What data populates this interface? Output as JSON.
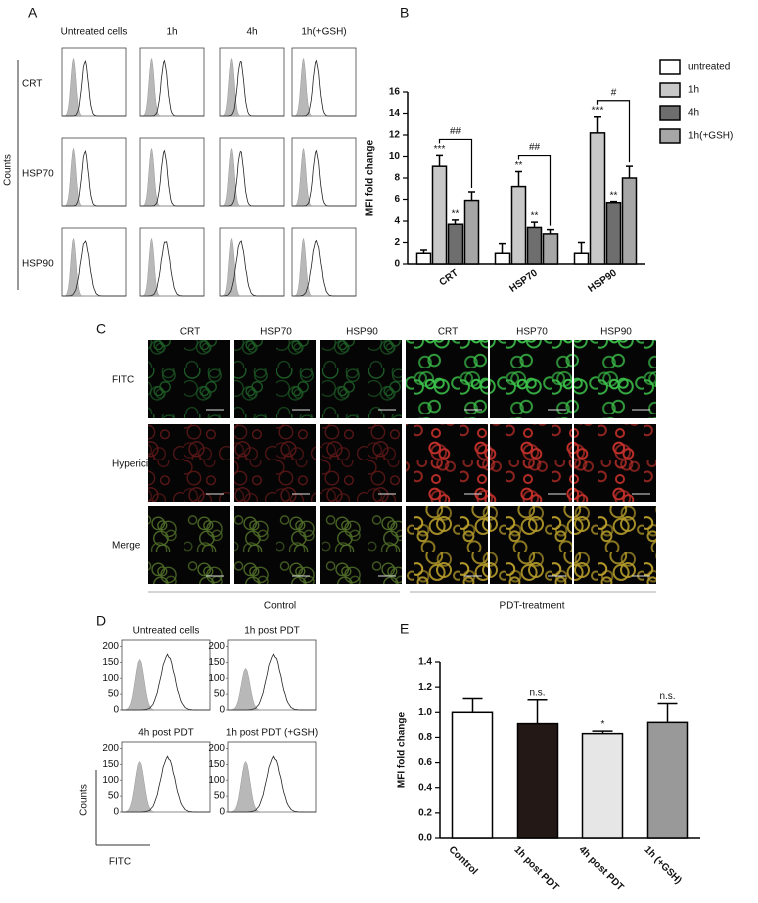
{
  "panel_labels": [
    "A",
    "B",
    "C",
    "D",
    "E"
  ],
  "panel_a": {
    "column_labels": [
      "Untreated cells",
      "1h",
      "4h",
      "1h(+GSH)"
    ],
    "row_labels": [
      "CRT",
      "HSP70",
      "HSP90"
    ],
    "y_label": "Counts"
  },
  "chart_data": [
    {
      "type": "bar",
      "y_label": "MFI fold change",
      "categories": [
        "CRT",
        "HSP70",
        "HSP90"
      ],
      "series": [
        {
          "name": "untreated",
          "color": "#ffffff",
          "values": [
            1.0,
            1.0,
            1.0
          ],
          "errors": [
            0.3,
            0.9,
            1.0
          ]
        },
        {
          "name": "1h",
          "color": "#c8c8c8",
          "values": [
            9.1,
            7.2,
            12.2
          ],
          "errors": [
            1.0,
            1.4,
            1.5
          ],
          "annotations": [
            "***",
            "**",
            "***"
          ]
        },
        {
          "name": "4h",
          "color": "#6e6e6e",
          "values": [
            3.7,
            3.4,
            5.7
          ],
          "errors": [
            0.4,
            0.5,
            0.1
          ],
          "annotations": [
            "**",
            "**",
            "**"
          ]
        },
        {
          "name": "1h(+GSH)",
          "color": "#a6a6a6",
          "values": [
            5.9,
            2.8,
            8.0
          ],
          "errors": [
            0.8,
            0.4,
            1.1
          ]
        }
      ],
      "comparisons": [
        "##",
        "##",
        "#"
      ],
      "ylim": [
        0,
        16
      ],
      "yticks": [
        0,
        2,
        4,
        6,
        8,
        10,
        12,
        14,
        16
      ],
      "legend": "right"
    },
    {
      "type": "bar",
      "y_label": "MFI fold change",
      "categories": [
        "Control",
        "1h post PDT",
        "4h post PDT",
        "1h (+GSH)"
      ],
      "values": [
        1.0,
        0.91,
        0.83,
        0.92
      ],
      "errors": [
        0.11,
        0.19,
        0.02,
        0.15
      ],
      "colors": [
        "#ffffff",
        "#231815",
        "#e6e6e6",
        "#999999"
      ],
      "annotations": [
        null,
        "n.s.",
        "*",
        "n.s."
      ],
      "ylim": [
        0,
        1.4
      ],
      "yticks": [
        {
          "value": 0,
          "label": "0.0"
        },
        0.2,
        0.4,
        0.6,
        0.8,
        {
          "value": 1,
          "label": "1.0"
        },
        1.2,
        1.4
      ]
    }
  ],
  "panel_c": {
    "column_labels": [
      "CRT",
      "HSP70",
      "HSP90",
      "CRT",
      "HSP70",
      "HSP90"
    ],
    "row_labels": [
      "FITC",
      "Hypericin",
      "Merge"
    ],
    "group_labels": [
      "Control",
      "PDT-treatment"
    ]
  },
  "panel_d": {
    "titles": [
      "Untreated cells",
      "1h post PDT",
      "4h post PDT",
      "1h post PDT (+GSH)"
    ],
    "yticks": [
      0,
      50,
      100,
      150,
      200
    ],
    "y_label": "Counts",
    "x_label": "FITC"
  }
}
